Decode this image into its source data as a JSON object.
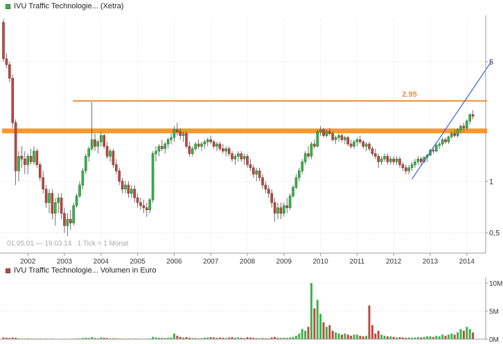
{
  "price_panel": {
    "legend": "IVU Traffic Technologie... (Xetra)",
    "info": "01.05.01 — 19.03.14   1 Tick = 1 Monat"
  },
  "volume_panel": {
    "legend": "IVU Traffic Technologie... Volumen in Euro"
  },
  "colors": {
    "up": "#3db24a",
    "up_border": "#1e7a2c",
    "down": "#bf4a41",
    "down_border": "#7e2d28",
    "wick": "#4a4a4a",
    "band_orange": "#f59a30",
    "line_orange": "#ef8d28",
    "trend_blue": "#3b5bdb",
    "axis": "#999999",
    "grid": "#dcdcdc",
    "text": "#333333"
  },
  "chart_data": [
    {
      "type": "candlestick",
      "title": "IVU Traffic Technologie... (Xetra)",
      "period_start": "01.05.01",
      "period_end": "19.03.14",
      "tick_interval": "1 Tick = 1 Monat",
      "scale": "log",
      "ylim": [
        0.38,
        9.0
      ],
      "y_ticks": [
        {
          "value": 5,
          "label": "5"
        },
        {
          "value": 1,
          "label": "1"
        },
        {
          "value": 0.5,
          "label": "0,5"
        }
      ],
      "x_year_labels": [
        "2002",
        "2003",
        "2004",
        "2005",
        "2006",
        "2007",
        "2008",
        "2009",
        "2010",
        "2011",
        "2012",
        "2013",
        "2014"
      ],
      "first_year_tick_index": 8,
      "resistance_line": {
        "value": 2.95,
        "label": "2.95"
      },
      "price_band": {
        "value": 1.97
      },
      "trendline": {
        "from_index": 134,
        "from_value": 1.03,
        "to_index": 160,
        "to_value": 5.0
      },
      "ohlc": [
        [
          8.5,
          8.9,
          5.0,
          5.2
        ],
        [
          5.2,
          5.6,
          4.6,
          4.8
        ],
        [
          4.8,
          5.0,
          3.8,
          4.0
        ],
        [
          4.0,
          4.2,
          2.05,
          2.2
        ],
        [
          2.2,
          2.3,
          0.95,
          1.15
        ],
        [
          1.15,
          1.5,
          1.0,
          1.4
        ],
        [
          1.4,
          1.6,
          1.2,
          1.35
        ],
        [
          1.35,
          1.5,
          1.1,
          1.25
        ],
        [
          1.25,
          1.45,
          1.1,
          1.4
        ],
        [
          1.4,
          1.55,
          1.25,
          1.3
        ],
        [
          1.3,
          1.6,
          1.25,
          1.5
        ],
        [
          1.5,
          1.55,
          1.2,
          1.25
        ],
        [
          1.25,
          1.3,
          1.0,
          1.05
        ],
        [
          1.05,
          1.15,
          0.85,
          0.9
        ],
        [
          0.9,
          0.95,
          0.7,
          0.75
        ],
        [
          0.75,
          0.9,
          0.65,
          0.85
        ],
        [
          0.85,
          0.9,
          0.6,
          0.65
        ],
        [
          0.65,
          0.8,
          0.55,
          0.75
        ],
        [
          0.75,
          0.85,
          0.65,
          0.8
        ],
        [
          0.8,
          0.85,
          0.6,
          0.65
        ],
        [
          0.65,
          0.7,
          0.5,
          0.55
        ],
        [
          0.55,
          0.65,
          0.48,
          0.6
        ],
        [
          0.6,
          0.68,
          0.52,
          0.57
        ],
        [
          0.57,
          0.75,
          0.55,
          0.72
        ],
        [
          0.72,
          0.85,
          0.7,
          0.82
        ],
        [
          0.82,
          1.0,
          0.8,
          0.95
        ],
        [
          0.95,
          1.2,
          0.9,
          1.15
        ],
        [
          1.15,
          1.45,
          1.1,
          1.4
        ],
        [
          1.4,
          1.6,
          1.3,
          1.55
        ],
        [
          1.55,
          2.9,
          1.5,
          1.75
        ],
        [
          1.75,
          1.9,
          1.5,
          1.6
        ],
        [
          1.6,
          1.75,
          1.45,
          1.7
        ],
        [
          1.7,
          1.95,
          1.6,
          1.85
        ],
        [
          1.85,
          1.9,
          1.55,
          1.6
        ],
        [
          1.6,
          1.7,
          1.35,
          1.4
        ],
        [
          1.4,
          1.55,
          1.3,
          1.5
        ],
        [
          1.5,
          1.55,
          1.2,
          1.25
        ],
        [
          1.25,
          1.35,
          1.1,
          1.15
        ],
        [
          1.15,
          1.2,
          0.95,
          1.0
        ],
        [
          1.0,
          1.05,
          0.85,
          0.9
        ],
        [
          0.9,
          1.0,
          0.85,
          0.95
        ],
        [
          0.95,
          1.0,
          0.8,
          0.85
        ],
        [
          0.85,
          0.95,
          0.8,
          0.9
        ],
        [
          0.9,
          0.95,
          0.75,
          0.8
        ],
        [
          0.8,
          0.85,
          0.7,
          0.75
        ],
        [
          0.75,
          0.8,
          0.68,
          0.72
        ],
        [
          0.72,
          0.78,
          0.65,
          0.7
        ],
        [
          0.7,
          0.75,
          0.62,
          0.68
        ],
        [
          0.68,
          0.8,
          0.65,
          0.78
        ],
        [
          0.78,
          1.5,
          0.75,
          1.45
        ],
        [
          1.45,
          1.6,
          1.3,
          1.5
        ],
        [
          1.5,
          1.65,
          1.4,
          1.6
        ],
        [
          1.6,
          1.75,
          1.5,
          1.55
        ],
        [
          1.55,
          1.7,
          1.45,
          1.65
        ],
        [
          1.65,
          1.8,
          1.55,
          1.75
        ],
        [
          1.75,
          1.9,
          1.65,
          1.8
        ],
        [
          1.8,
          2.1,
          1.7,
          2.0
        ],
        [
          2.0,
          2.2,
          1.85,
          1.95
        ],
        [
          1.95,
          2.05,
          1.75,
          1.85
        ],
        [
          1.85,
          1.95,
          1.7,
          1.9
        ],
        [
          1.9,
          1.95,
          1.55,
          1.6
        ],
        [
          1.6,
          1.7,
          1.4,
          1.45
        ],
        [
          1.45,
          1.6,
          1.4,
          1.55
        ],
        [
          1.55,
          1.7,
          1.5,
          1.65
        ],
        [
          1.65,
          1.75,
          1.55,
          1.6
        ],
        [
          1.6,
          1.7,
          1.5,
          1.65
        ],
        [
          1.65,
          1.75,
          1.55,
          1.7
        ],
        [
          1.7,
          1.8,
          1.6,
          1.75
        ],
        [
          1.75,
          1.85,
          1.65,
          1.7
        ],
        [
          1.7,
          1.75,
          1.55,
          1.6
        ],
        [
          1.6,
          1.7,
          1.5,
          1.65
        ],
        [
          1.65,
          1.7,
          1.5,
          1.55
        ],
        [
          1.55,
          1.65,
          1.45,
          1.5
        ],
        [
          1.5,
          1.6,
          1.4,
          1.55
        ],
        [
          1.55,
          1.6,
          1.4,
          1.45
        ],
        [
          1.45,
          1.5,
          1.3,
          1.35
        ],
        [
          1.35,
          1.45,
          1.25,
          1.4
        ],
        [
          1.4,
          1.5,
          1.3,
          1.45
        ],
        [
          1.45,
          1.5,
          1.3,
          1.35
        ],
        [
          1.35,
          1.45,
          1.25,
          1.4
        ],
        [
          1.4,
          1.45,
          1.2,
          1.25
        ],
        [
          1.25,
          1.35,
          1.15,
          1.2
        ],
        [
          1.2,
          1.25,
          1.05,
          1.1
        ],
        [
          1.1,
          1.2,
          1.0,
          1.15
        ],
        [
          1.15,
          1.2,
          1.0,
          1.05
        ],
        [
          1.05,
          1.1,
          0.9,
          0.95
        ],
        [
          0.95,
          1.0,
          0.85,
          0.9
        ],
        [
          0.9,
          0.95,
          0.8,
          0.85
        ],
        [
          0.85,
          0.9,
          0.7,
          0.75
        ],
        [
          0.75,
          0.8,
          0.58,
          0.65
        ],
        [
          0.65,
          0.75,
          0.6,
          0.7
        ],
        [
          0.7,
          0.75,
          0.6,
          0.65
        ],
        [
          0.65,
          0.75,
          0.62,
          0.72
        ],
        [
          0.72,
          0.8,
          0.65,
          0.7
        ],
        [
          0.7,
          0.85,
          0.68,
          0.82
        ],
        [
          0.82,
          0.95,
          0.8,
          0.92
        ],
        [
          0.92,
          1.1,
          0.9,
          1.05
        ],
        [
          1.05,
          1.2,
          1.0,
          1.15
        ],
        [
          1.15,
          1.35,
          1.1,
          1.3
        ],
        [
          1.3,
          1.5,
          1.25,
          1.45
        ],
        [
          1.45,
          1.6,
          1.35,
          1.4
        ],
        [
          1.4,
          1.7,
          1.35,
          1.65
        ],
        [
          1.65,
          1.75,
          1.55,
          1.6
        ],
        [
          1.6,
          2.0,
          1.58,
          1.95
        ],
        [
          1.95,
          2.1,
          1.85,
          2.0
        ],
        [
          2.0,
          2.05,
          1.8,
          1.85
        ],
        [
          1.85,
          2.0,
          1.8,
          1.95
        ],
        [
          1.95,
          2.05,
          1.85,
          1.9
        ],
        [
          1.9,
          1.95,
          1.7,
          1.75
        ],
        [
          1.75,
          1.85,
          1.65,
          1.8
        ],
        [
          1.8,
          1.9,
          1.7,
          1.85
        ],
        [
          1.85,
          1.9,
          1.7,
          1.75
        ],
        [
          1.75,
          1.85,
          1.65,
          1.8
        ],
        [
          1.8,
          1.85,
          1.6,
          1.65
        ],
        [
          1.65,
          1.75,
          1.55,
          1.6
        ],
        [
          1.6,
          1.75,
          1.55,
          1.7
        ],
        [
          1.7,
          1.8,
          1.6,
          1.75
        ],
        [
          1.75,
          1.85,
          1.65,
          1.7
        ],
        [
          1.7,
          1.75,
          1.55,
          1.6
        ],
        [
          1.6,
          1.7,
          1.5,
          1.65
        ],
        [
          1.65,
          1.7,
          1.5,
          1.55
        ],
        [
          1.55,
          1.6,
          1.4,
          1.45
        ],
        [
          1.45,
          1.55,
          1.35,
          1.4
        ],
        [
          1.4,
          1.45,
          1.2,
          1.3
        ],
        [
          1.3,
          1.4,
          1.25,
          1.35
        ],
        [
          1.35,
          1.45,
          1.3,
          1.4
        ],
        [
          1.4,
          1.45,
          1.25,
          1.3
        ],
        [
          1.3,
          1.4,
          1.25,
          1.35
        ],
        [
          1.35,
          1.4,
          1.25,
          1.3
        ],
        [
          1.3,
          1.4,
          1.25,
          1.35
        ],
        [
          1.35,
          1.4,
          1.2,
          1.25
        ],
        [
          1.25,
          1.3,
          1.15,
          1.2
        ],
        [
          1.2,
          1.25,
          1.1,
          1.15
        ],
        [
          1.15,
          1.25,
          1.1,
          1.2
        ],
        [
          1.2,
          1.3,
          1.15,
          1.25
        ],
        [
          1.25,
          1.35,
          1.2,
          1.3
        ],
        [
          1.3,
          1.4,
          1.25,
          1.35
        ],
        [
          1.35,
          1.4,
          1.25,
          1.3
        ],
        [
          1.3,
          1.4,
          1.28,
          1.38
        ],
        [
          1.38,
          1.45,
          1.3,
          1.42
        ],
        [
          1.42,
          1.55,
          1.4,
          1.52
        ],
        [
          1.52,
          1.6,
          1.45,
          1.5
        ],
        [
          1.5,
          1.65,
          1.48,
          1.62
        ],
        [
          1.62,
          1.7,
          1.55,
          1.65
        ],
        [
          1.65,
          1.8,
          1.6,
          1.75
        ],
        [
          1.75,
          1.8,
          1.65,
          1.7
        ],
        [
          1.7,
          1.85,
          1.65,
          1.82
        ],
        [
          1.82,
          1.95,
          1.78,
          1.9
        ],
        [
          1.9,
          2.0,
          1.8,
          1.85
        ],
        [
          1.85,
          2.05,
          1.8,
          2.0
        ],
        [
          2.0,
          2.15,
          1.9,
          2.1
        ],
        [
          2.1,
          2.2,
          1.95,
          2.05
        ],
        [
          2.05,
          2.3,
          2.0,
          2.25
        ],
        [
          2.25,
          2.5,
          2.15,
          2.45
        ],
        [
          2.45,
          2.6,
          2.3,
          2.4
        ]
      ]
    },
    {
      "type": "bar",
      "title": "IVU Traffic Technologie... Volumen in Euro",
      "ylabel": "Volumen in Euro",
      "ylim": [
        0,
        10.5
      ],
      "y_ticks": [
        {
          "value": 10,
          "label": "10M"
        },
        {
          "value": 5,
          "label": "5M"
        },
        {
          "value": 0,
          "label": "0M"
        }
      ],
      "values_millions": [
        0.3,
        0.25,
        0.2,
        0.3,
        0.25,
        0.15,
        0.1,
        0.1,
        0.15,
        0.1,
        0.12,
        0.1,
        0.1,
        0.08,
        0.1,
        0.08,
        0.1,
        0.08,
        0.06,
        0.08,
        0.08,
        0.06,
        0.08,
        0.1,
        0.12,
        0.15,
        0.2,
        0.25,
        0.2,
        0.35,
        0.2,
        0.15,
        0.3,
        0.25,
        0.2,
        0.15,
        0.15,
        0.12,
        0.1,
        0.1,
        0.08,
        0.1,
        0.08,
        0.1,
        0.1,
        0.08,
        0.08,
        0.1,
        0.12,
        0.4,
        0.3,
        0.25,
        0.2,
        0.2,
        0.25,
        0.3,
        1.0,
        0.6,
        0.4,
        0.3,
        0.35,
        0.25,
        0.2,
        0.2,
        0.15,
        0.2,
        0.25,
        0.3,
        0.35,
        0.3,
        0.25,
        0.3,
        0.25,
        0.2,
        0.3,
        0.35,
        0.25,
        0.3,
        0.25,
        0.2,
        0.35,
        0.3,
        0.25,
        0.2,
        0.15,
        0.2,
        0.15,
        0.15,
        0.3,
        0.4,
        0.25,
        0.2,
        0.25,
        0.2,
        0.3,
        0.4,
        0.6,
        1.0,
        1.8,
        1.5,
        2.2,
        10.0,
        5.5,
        7.0,
        4.5,
        3.0,
        2.2,
        2.5,
        1.5,
        1.2,
        1.0,
        0.8,
        1.0,
        0.8,
        0.6,
        0.8,
        0.8,
        0.6,
        0.5,
        0.6,
        6.0,
        2.5,
        1.0,
        1.5,
        0.8,
        0.6,
        0.5,
        0.5,
        0.4,
        0.3,
        0.35,
        0.3,
        0.25,
        0.3,
        0.25,
        0.3,
        0.35,
        0.3,
        0.4,
        0.5,
        0.5,
        0.4,
        0.6,
        0.5,
        0.8,
        0.6,
        0.8,
        1.0,
        0.8,
        1.2,
        1.8,
        1.5,
        2.2,
        1.8,
        1.2
      ]
    }
  ]
}
